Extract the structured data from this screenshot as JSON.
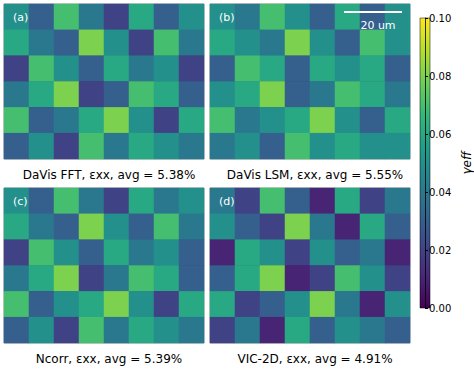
{
  "chart_data": {
    "type": "heatmap",
    "tick_labels": false,
    "colorbar": {
      "label": "γeff",
      "range": [
        0,
        0.1
      ],
      "ticks": [
        {
          "value": 0,
          "label": "0.00"
        },
        {
          "value": 0.02,
          "label": "0.02"
        },
        {
          "value": 0.04,
          "label": "0.04"
        },
        {
          "value": 0.06,
          "label": "0.06"
        },
        {
          "value": 0.08,
          "label": "0.08"
        },
        {
          "value": 0.1,
          "label": "0.10"
        }
      ]
    },
    "panels": [
      {
        "panel_label": "(a)",
        "title": "DaVis FFT, εxx, avg = 5.38%",
        "cells": [
          [
            0.05,
            0.03,
            0.07,
            0.04,
            0.02,
            0.06,
            0.03,
            0.05
          ],
          [
            0.06,
            0.04,
            0.03,
            0.08,
            0.05,
            0.02,
            0.07,
            0.04
          ],
          [
            0.02,
            0.07,
            0.05,
            0.03,
            0.06,
            0.04,
            0.05,
            0.02
          ],
          [
            0.04,
            0.06,
            0.08,
            0.02,
            0.03,
            0.07,
            0.06,
            0.03
          ],
          [
            0.07,
            0.03,
            0.04,
            0.06,
            0.08,
            0.05,
            0.02,
            0.06
          ],
          [
            0.03,
            0.05,
            0.02,
            0.07,
            0.04,
            0.06,
            0.05,
            0.04
          ]
        ]
      },
      {
        "panel_label": "(b)",
        "title": "DaVis LSM, εxx, avg = 5.55%",
        "annotation": "20 um",
        "cells": [
          [
            0.05,
            0.04,
            0.07,
            0.05,
            0.03,
            0.06,
            0.03,
            0.05
          ],
          [
            0.06,
            0.05,
            0.04,
            0.08,
            0.05,
            0.03,
            0.07,
            0.05
          ],
          [
            0.03,
            0.07,
            0.06,
            0.03,
            0.06,
            0.05,
            0.06,
            0.03
          ],
          [
            0.05,
            0.06,
            0.08,
            0.03,
            0.04,
            0.07,
            0.06,
            0.04
          ],
          [
            0.07,
            0.04,
            0.05,
            0.06,
            0.08,
            0.05,
            0.03,
            0.06
          ],
          [
            0.04,
            0.05,
            0.03,
            0.07,
            0.05,
            0.06,
            0.05,
            0.05
          ]
        ]
      },
      {
        "panel_label": "(c)",
        "title": "Ncorr, εxx, avg = 5.39%",
        "cells": [
          [
            0.05,
            0.03,
            0.07,
            0.04,
            0.02,
            0.06,
            0.04,
            0.05
          ],
          [
            0.06,
            0.04,
            0.03,
            0.08,
            0.05,
            0.03,
            0.07,
            0.04
          ],
          [
            0.02,
            0.07,
            0.05,
            0.03,
            0.06,
            0.04,
            0.05,
            0.03
          ],
          [
            0.04,
            0.06,
            0.08,
            0.02,
            0.04,
            0.07,
            0.06,
            0.03
          ],
          [
            0.07,
            0.03,
            0.05,
            0.06,
            0.08,
            0.05,
            0.02,
            0.06
          ],
          [
            0.03,
            0.05,
            0.02,
            0.07,
            0.04,
            0.06,
            0.05,
            0.04
          ]
        ]
      },
      {
        "panel_label": "(d)",
        "title": "VIC-2D, εxx, avg = 4.91%",
        "cells": [
          [
            0.04,
            0.02,
            0.07,
            0.03,
            0.01,
            0.06,
            0.02,
            0.04
          ],
          [
            0.05,
            0.03,
            0.02,
            0.08,
            0.04,
            0.01,
            0.06,
            0.03
          ],
          [
            0.01,
            0.06,
            0.05,
            0.02,
            0.05,
            0.03,
            0.04,
            0.01
          ],
          [
            0.03,
            0.06,
            0.08,
            0.01,
            0.02,
            0.07,
            0.05,
            0.02
          ],
          [
            0.06,
            0.02,
            0.03,
            0.05,
            0.08,
            0.04,
            0.01,
            0.05
          ],
          [
            0.02,
            0.04,
            0.01,
            0.06,
            0.03,
            0.05,
            0.04,
            0.03
          ]
        ]
      }
    ]
  }
}
